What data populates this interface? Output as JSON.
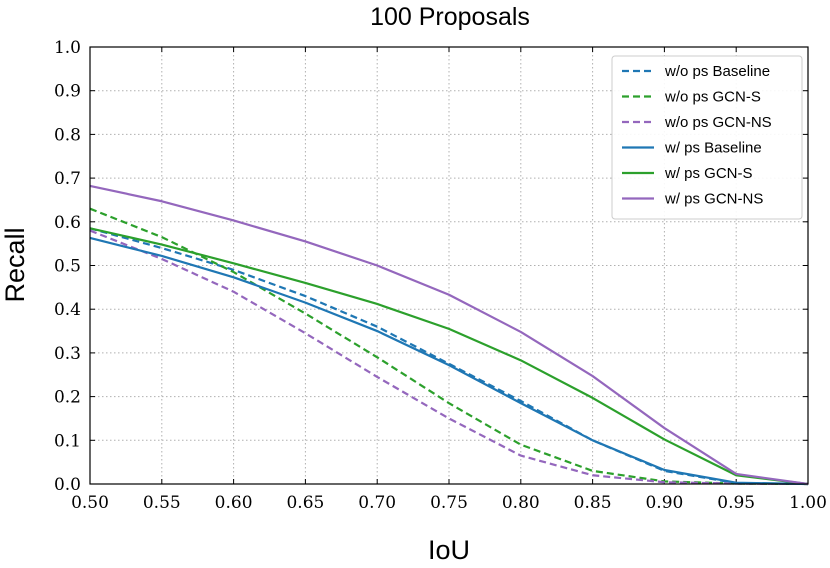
{
  "chart_data": {
    "type": "line",
    "title": "100 Proposals",
    "xlabel": "IoU",
    "ylabel": "Recall",
    "xlim": [
      0.5,
      1.0
    ],
    "ylim": [
      0.0,
      1.0
    ],
    "grid": true,
    "legend_position": "top-right",
    "x_ticks": [
      "0.50",
      "0.55",
      "0.60",
      "0.65",
      "0.70",
      "0.75",
      "0.80",
      "0.85",
      "0.90",
      "0.95",
      "1.00"
    ],
    "y_ticks": [
      "0.0",
      "0.1",
      "0.2",
      "0.3",
      "0.4",
      "0.5",
      "0.6",
      "0.7",
      "0.8",
      "0.9",
      "1.0"
    ],
    "x": [
      0.5,
      0.55,
      0.6,
      0.65,
      0.7,
      0.75,
      0.8,
      0.85,
      0.9,
      0.95,
      1.0
    ],
    "series": [
      {
        "name": "w/o ps Baseline",
        "color": "#1f77b4",
        "style": "dashed",
        "values": [
          0.585,
          0.54,
          0.49,
          0.43,
          0.36,
          0.275,
          0.19,
          0.1,
          0.03,
          0.002,
          0.0
        ]
      },
      {
        "name": "w/o ps GCN-S",
        "color": "#2ca02c",
        "style": "dashed",
        "values": [
          0.63,
          0.565,
          0.485,
          0.39,
          0.29,
          0.185,
          0.09,
          0.03,
          0.006,
          0.001,
          0.0
        ]
      },
      {
        "name": "w/o ps GCN-NS",
        "color": "#9467bd",
        "style": "dashed",
        "values": [
          0.58,
          0.515,
          0.44,
          0.345,
          0.245,
          0.15,
          0.065,
          0.02,
          0.004,
          0.001,
          0.0
        ]
      },
      {
        "name": "w/ ps Baseline",
        "color": "#1f77b4",
        "style": "solid",
        "values": [
          0.563,
          0.522,
          0.473,
          0.415,
          0.35,
          0.272,
          0.185,
          0.1,
          0.032,
          0.003,
          0.0
        ]
      },
      {
        "name": "w/ ps GCN-S",
        "color": "#2ca02c",
        "style": "solid",
        "values": [
          0.585,
          0.548,
          0.505,
          0.46,
          0.412,
          0.355,
          0.283,
          0.197,
          0.102,
          0.02,
          0.0
        ]
      },
      {
        "name": "w/ ps GCN-NS",
        "color": "#9467bd",
        "style": "solid",
        "values": [
          0.682,
          0.647,
          0.603,
          0.555,
          0.5,
          0.433,
          0.348,
          0.247,
          0.128,
          0.023,
          0.0
        ]
      }
    ]
  }
}
